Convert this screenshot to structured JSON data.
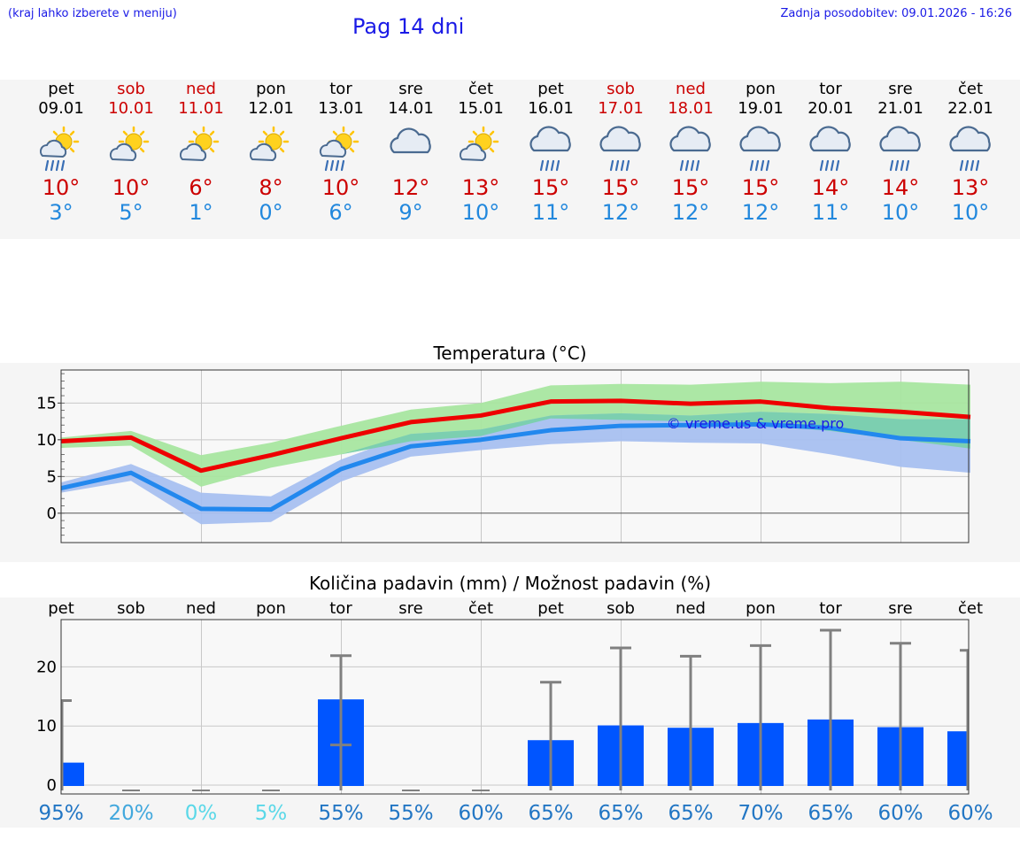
{
  "header": {
    "note": "(kraj lahko izberete v meniju)",
    "title": "Pag 14 dni",
    "updated": "Zadnja posodobitev: 09.01.2026 - 16:26"
  },
  "days": [
    {
      "name": "pet",
      "date": "09.01",
      "max": "10°",
      "min": "3°",
      "weekend": false,
      "icon": "sun-cloud-rain-icon"
    },
    {
      "name": "sob",
      "date": "10.01",
      "max": "10°",
      "min": "5°",
      "weekend": true,
      "icon": "sun-cloud-icon"
    },
    {
      "name": "ned",
      "date": "11.01",
      "max": "6°",
      "min": "1°",
      "weekend": true,
      "icon": "sun-cloud-icon"
    },
    {
      "name": "pon",
      "date": "12.01",
      "max": "8°",
      "min": "0°",
      "weekend": false,
      "icon": "sun-cloud-icon"
    },
    {
      "name": "tor",
      "date": "13.01",
      "max": "10°",
      "min": "6°",
      "weekend": false,
      "icon": "sun-cloud-rain-icon"
    },
    {
      "name": "sre",
      "date": "14.01",
      "max": "12°",
      "min": "9°",
      "weekend": false,
      "icon": "cloud-icon"
    },
    {
      "name": "čet",
      "date": "15.01",
      "max": "13°",
      "min": "10°",
      "weekend": false,
      "icon": "sun-cloud-icon"
    },
    {
      "name": "pet",
      "date": "16.01",
      "max": "15°",
      "min": "11°",
      "weekend": false,
      "icon": "cloud-rain-icon"
    },
    {
      "name": "sob",
      "date": "17.01",
      "max": "15°",
      "min": "12°",
      "weekend": true,
      "icon": "cloud-rain-icon"
    },
    {
      "name": "ned",
      "date": "18.01",
      "max": "15°",
      "min": "12°",
      "weekend": true,
      "icon": "cloud-rain-icon"
    },
    {
      "name": "pon",
      "date": "19.01",
      "max": "15°",
      "min": "12°",
      "weekend": false,
      "icon": "cloud-rain-icon"
    },
    {
      "name": "tor",
      "date": "20.01",
      "max": "14°",
      "min": "11°",
      "weekend": false,
      "icon": "cloud-rain-icon"
    },
    {
      "name": "sre",
      "date": "21.01",
      "max": "14°",
      "min": "10°",
      "weekend": false,
      "icon": "cloud-rain-icon"
    },
    {
      "name": "čet",
      "date": "22.01",
      "max": "13°",
      "min": "10°",
      "weekend": false,
      "icon": "cloud-rain-icon"
    }
  ],
  "colors": {
    "max_line": "#ee0000",
    "max_band": "#a8e6a0",
    "min_line": "#2288ee",
    "min_band": "#a8c0f0",
    "overlap_band": "#7ccfb0",
    "bar": "#0055ff",
    "whisker": "#808080",
    "grid": "#c8c8c8"
  },
  "chart_data": [
    {
      "type": "line",
      "title": "Temperatura (°C)",
      "watermark": "© vreme.us & vreme.pro",
      "xlabel": "",
      "ylabel": "",
      "ylim": [
        -4,
        19.5
      ],
      "yticks": [
        0,
        5,
        10,
        15
      ],
      "x_index": [
        0,
        1,
        2,
        3,
        4,
        5,
        6,
        7,
        8,
        9,
        10,
        11,
        12,
        13
      ],
      "series": [
        {
          "name": "max",
          "values": [
            9.8,
            10.3,
            5.8,
            7.9,
            10.2,
            12.4,
            13.3,
            15.2,
            15.3,
            14.9,
            15.2,
            14.3,
            13.8,
            13.1
          ],
          "band_low": [
            8.9,
            9.2,
            3.6,
            6.2,
            8.0,
            9.8,
            10.5,
            12.9,
            12.7,
            12.5,
            12.0,
            11.2,
            10.0,
            8.8
          ],
          "band_high": [
            10.3,
            11.2,
            7.9,
            9.6,
            11.9,
            14.1,
            15.0,
            17.4,
            17.6,
            17.5,
            17.9,
            17.7,
            17.9,
            17.5
          ]
        },
        {
          "name": "min",
          "values": [
            3.4,
            5.5,
            0.6,
            0.5,
            6.0,
            9.1,
            10.0,
            11.3,
            11.9,
            12.0,
            12.1,
            11.6,
            10.2,
            9.8
          ],
          "band_low": [
            2.8,
            4.4,
            -1.5,
            -1.2,
            4.3,
            7.7,
            8.6,
            9.4,
            9.8,
            9.6,
            9.5,
            8.0,
            6.3,
            5.5
          ],
          "band_high": [
            4.2,
            6.7,
            2.8,
            2.3,
            7.3,
            10.8,
            11.4,
            13.3,
            13.6,
            13.3,
            13.8,
            13.5,
            12.8,
            12.8
          ]
        }
      ]
    },
    {
      "type": "bar",
      "title": "Količina padavin (mm) / Možnost padavin (%)",
      "categories": [
        "pet",
        "sob",
        "ned",
        "pon",
        "tor",
        "sre",
        "čet",
        "pet",
        "sob",
        "ned",
        "pon",
        "tor",
        "sre",
        "čet"
      ],
      "values": [
        3.8,
        0,
        0,
        0,
        14.5,
        0,
        0,
        7.6,
        10.1,
        9.7,
        10.5,
        11.1,
        9.8,
        9.1
      ],
      "error_low": [
        0,
        0,
        0,
        0,
        6.8,
        0,
        0,
        0,
        0,
        0,
        0,
        0,
        0,
        0
      ],
      "error_high": [
        14.3,
        0,
        0,
        0,
        21.9,
        0,
        0,
        17.4,
        23.2,
        21.8,
        23.6,
        26.2,
        24.0,
        22.8
      ],
      "probability": [
        "95%",
        "20%",
        "0%",
        "5%",
        "55%",
        "55%",
        "60%",
        "65%",
        "65%",
        "65%",
        "70%",
        "65%",
        "60%",
        "60%"
      ],
      "prob_colors": [
        "#2276c4",
        "#42a8dd",
        "#5ad8e8",
        "#5ad8e8",
        "#2276c4",
        "#2276c4",
        "#2276c4",
        "#2276c4",
        "#2276c4",
        "#2276c4",
        "#2276c4",
        "#2276c4",
        "#2276c4",
        "#2276c4"
      ],
      "ylim": [
        -1.5,
        28
      ],
      "yticks": [
        0,
        10,
        20
      ]
    }
  ]
}
